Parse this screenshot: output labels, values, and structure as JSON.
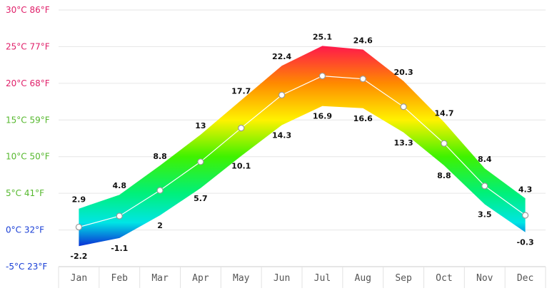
{
  "chart_data": {
    "type": "area",
    "categories": [
      "Jan",
      "Feb",
      "Mar",
      "Apr",
      "May",
      "Jun",
      "Jul",
      "Aug",
      "Sep",
      "Oct",
      "Nov",
      "Dec"
    ],
    "series": [
      {
        "values": [
          2.9,
          4.8,
          8.8,
          13,
          17.7,
          22.4,
          25.1,
          24.6,
          20.3,
          14.7,
          8.4,
          4.3
        ]
      },
      {
        "values": [
          -2.2,
          -1.1,
          2,
          5.7,
          10.1,
          14.3,
          16.9,
          16.6,
          13.3,
          8.8,
          3.5,
          -0.3
        ]
      },
      {
        "values": [
          0.4,
          1.9,
          5.4,
          9.3,
          13.9,
          18.4,
          21,
          20.6,
          16.8,
          11.8,
          6,
          2
        ]
      }
    ],
    "y_tick_values": [
      -5,
      0,
      5,
      10,
      15,
      20,
      25,
      30
    ],
    "y_tick_labels": [
      "-5°C 23°F",
      "0°C 32°F",
      "5°C 41°F",
      "10°C 50°F",
      "15°C 59°F",
      "20°C 68°F",
      "25°C 77°F",
      "30°C 86°F"
    ],
    "y_tick_colors": [
      "#1a3fd6",
      "#1a3fd6",
      "#56b82e",
      "#56b82e",
      "#56b82e",
      "#e0206a",
      "#e0206a",
      "#e0206a"
    ],
    "ylim": [
      -5,
      30
    ],
    "grid": true,
    "colors": {
      "gradient_stops": [
        {
          "temp": 25,
          "color": "#ff1a4a"
        },
        {
          "temp": 20,
          "color": "#ff8a00"
        },
        {
          "temp": 15,
          "color": "#fff200"
        },
        {
          "temp": 10,
          "color": "#3ff200"
        },
        {
          "temp": 5,
          "color": "#00f07a"
        },
        {
          "temp": 1,
          "color": "#00e5e5"
        },
        {
          "temp": -2,
          "color": "#0a3ad6"
        }
      ],
      "grid": "#e6e6e6",
      "mean_line": "#ffffff",
      "marker_stroke": "#999999"
    }
  }
}
